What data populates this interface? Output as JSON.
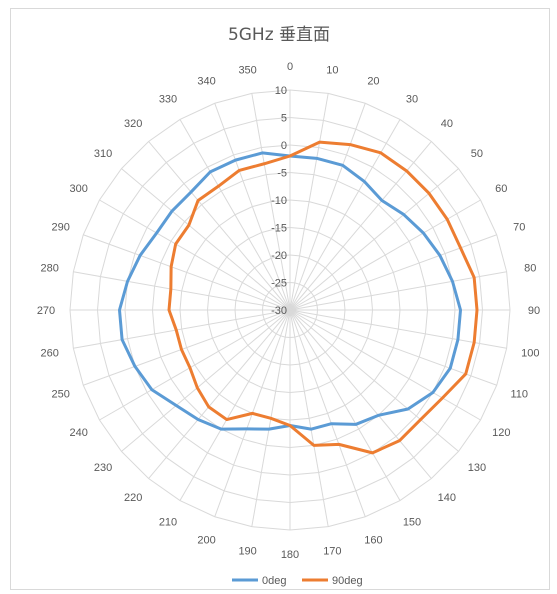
{
  "chart_data": {
    "type": "polar-line",
    "title": "5GHz 垂直面",
    "angle_labels": [
      "0",
      "10",
      "20",
      "30",
      "40",
      "50",
      "60",
      "70",
      "80",
      "90",
      "100",
      "110",
      "120",
      "130",
      "140",
      "150",
      "160",
      "170",
      "180",
      "190",
      "200",
      "210",
      "220",
      "230",
      "240",
      "250",
      "260",
      "270",
      "280",
      "290",
      "300",
      "310",
      "320",
      "330",
      "340",
      "350"
    ],
    "radial_tick_labels": [
      "10",
      "5",
      "0",
      "-5",
      "-10",
      "-15",
      "-20",
      "-25",
      "-30"
    ],
    "rlim": [
      -30,
      10
    ],
    "grid": true,
    "legend_position": "bottom",
    "series": [
      {
        "name": "0deg",
        "color": "#5b9bd5",
        "angles": [
          0,
          10,
          20,
          30,
          40,
          50,
          60,
          70,
          80,
          90,
          100,
          110,
          120,
          130,
          140,
          150,
          160,
          170,
          180,
          190,
          200,
          210,
          220,
          230,
          240,
          250,
          260,
          270,
          280,
          290,
          300,
          310,
          320,
          330,
          340,
          350
        ],
        "values": [
          -2,
          -2,
          -2,
          -3,
          -4,
          -3,
          -2,
          -1,
          0,
          1,
          1,
          1,
          0,
          -2,
          -5,
          -6,
          -8,
          -8,
          -9,
          -8,
          -7,
          -5,
          -4,
          -3,
          -1,
          0,
          1,
          1,
          0,
          -1,
          -2,
          -2,
          -2,
          -1,
          -1,
          -1
        ]
      },
      {
        "name": "90deg",
        "color": "#ed7d31",
        "angles": [
          0,
          10,
          20,
          30,
          40,
          50,
          60,
          70,
          80,
          90,
          100,
          110,
          120,
          130,
          140,
          150,
          160,
          170,
          180,
          190,
          200,
          210,
          220,
          230,
          240,
          250,
          260,
          270,
          280,
          290,
          300,
          310,
          320,
          330,
          340,
          350
        ],
        "values": [
          -2,
          1,
          2,
          3,
          3,
          3,
          3,
          3,
          4,
          4,
          4,
          4,
          2,
          1,
          1,
          0,
          -4,
          -5,
          -9,
          -10,
          -10,
          -7,
          -7,
          -8,
          -9,
          -9,
          -9,
          -8,
          -8,
          -7,
          -6,
          -6,
          -4,
          -4,
          -3,
          -3
        ]
      }
    ]
  }
}
